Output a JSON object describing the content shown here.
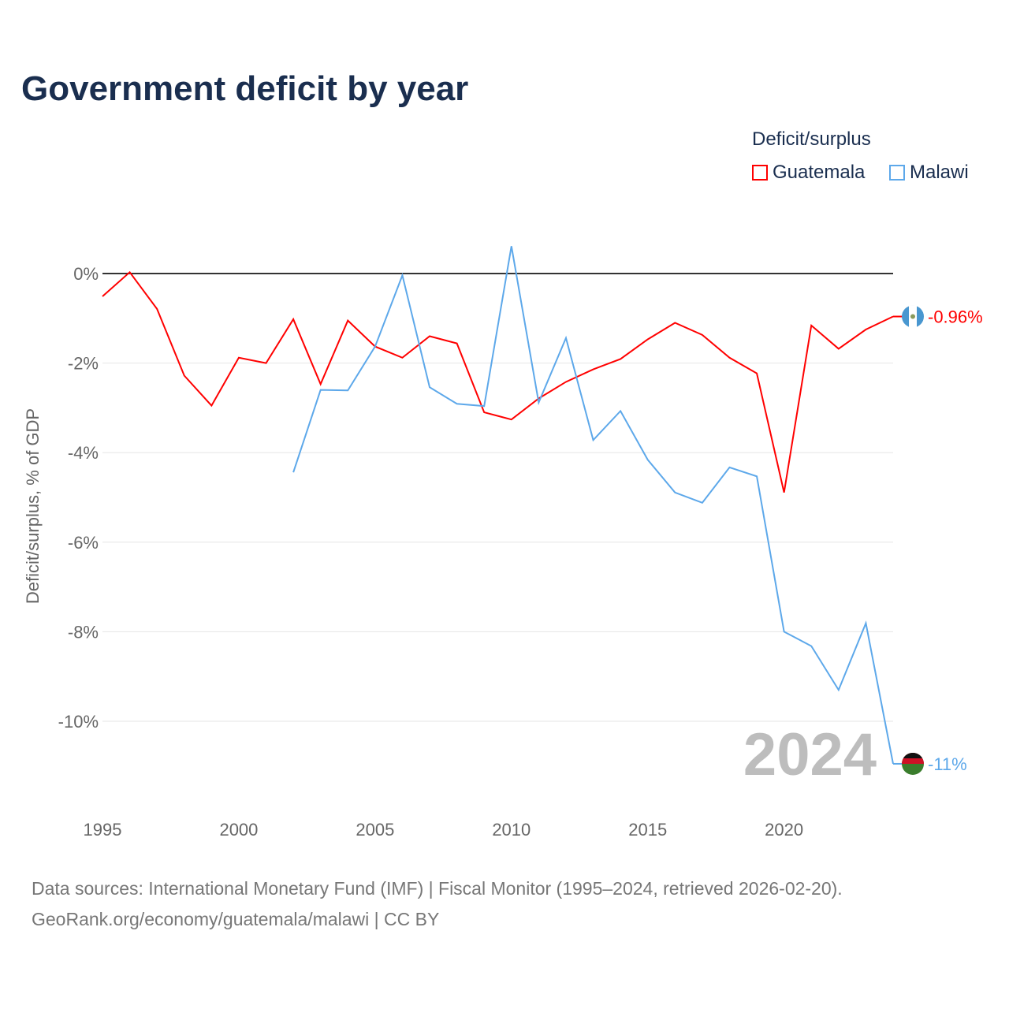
{
  "title": "Government deficit by year",
  "legend_title": "Deficit/surplus",
  "source_line1": "Data sources: International Monetary Fund (IMF) | Fiscal Monitor (1995–2024, retrieved 2026-02-20).",
  "source_line2": "GeoRank.org/economy/guatemala/malawi | CC BY",
  "chart_data": {
    "type": "line",
    "title": "Government deficit by year",
    "xlabel": "",
    "ylabel": "Deficit/surplus, % of GDP",
    "xlim": [
      1995,
      2024
    ],
    "ylim": [
      -11.5,
      1
    ],
    "xticks": [
      1995,
      2000,
      2005,
      2010,
      2015,
      2020
    ],
    "yticks": [
      0,
      -2,
      -4,
      -6,
      -8,
      -10
    ],
    "ytick_labels": [
      "0%",
      "-2%",
      "-4%",
      "-6%",
      "-8%",
      "-10%"
    ],
    "year_watermark": "2024",
    "legend_placement": "top-right",
    "series": [
      {
        "name": "Guatemala",
        "color": "#ff0000",
        "end_label": "-0.96%",
        "x": [
          1995,
          1996,
          1997,
          1998,
          1999,
          2000,
          2001,
          2002,
          2003,
          2004,
          2005,
          2006,
          2007,
          2008,
          2009,
          2010,
          2011,
          2012,
          2013,
          2014,
          2015,
          2016,
          2017,
          2018,
          2019,
          2020,
          2021,
          2022,
          2023,
          2024
        ],
        "values": [
          -0.51,
          0.03,
          -0.79,
          -2.28,
          -2.95,
          -1.88,
          -2.0,
          -1.02,
          -2.47,
          -1.05,
          -1.63,
          -1.88,
          -1.4,
          -1.56,
          -3.1,
          -3.26,
          -2.79,
          -2.42,
          -2.14,
          -1.91,
          -1.47,
          -1.1,
          -1.37,
          -1.88,
          -2.23,
          -4.89,
          -1.16,
          -1.68,
          -1.25,
          -0.96
        ]
      },
      {
        "name": "Malawi",
        "color": "#5da8ea",
        "end_label": "-11%",
        "x": [
          2002,
          2003,
          2004,
          2005,
          2006,
          2007,
          2008,
          2009,
          2010,
          2011,
          2012,
          2013,
          2014,
          2015,
          2016,
          2017,
          2018,
          2019,
          2020,
          2021,
          2022,
          2023,
          2024
        ],
        "values": [
          -4.44,
          -2.6,
          -2.61,
          -1.63,
          -0.04,
          -2.54,
          -2.91,
          -2.96,
          0.61,
          -2.88,
          -1.44,
          -3.72,
          -3.07,
          -4.16,
          -4.89,
          -5.12,
          -4.33,
          -4.53,
          -8.0,
          -8.32,
          -9.3,
          -7.81,
          -10.95
        ]
      }
    ]
  }
}
